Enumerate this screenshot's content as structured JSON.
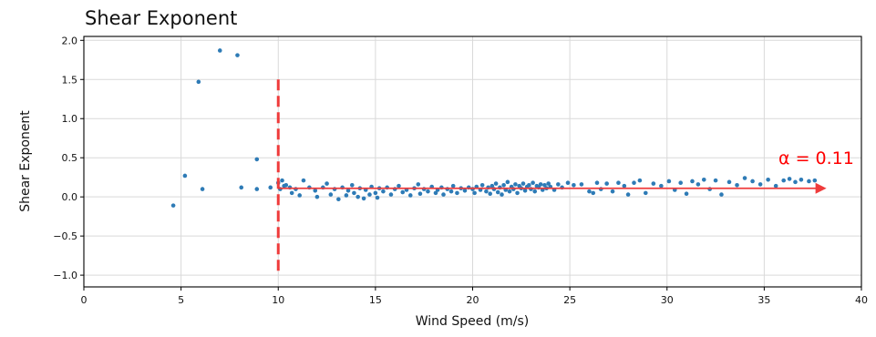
{
  "chart_data": {
    "type": "scatter",
    "title": "Shear Exponent",
    "xlabel": "Wind Speed (m/s)",
    "ylabel": "Shear Exponent",
    "xlim": [
      0,
      40
    ],
    "ylim": [
      -1.15,
      2.05
    ],
    "x_ticks": [
      "0",
      "5",
      "10",
      "15",
      "20",
      "25",
      "30",
      "35",
      "40"
    ],
    "y_ticks": [
      "2.0",
      "1.5",
      "1.0",
      "0.5",
      "0.0",
      "−0.5",
      "−1.0"
    ],
    "grid": true,
    "colors": {
      "points": "#2e7bb6",
      "cutoff_line": "#ef3b3b",
      "fit_arrow": "#ef3b3b",
      "annotation": "#ff0000"
    },
    "cutoff": {
      "x": 10,
      "y_range": [
        -1.0,
        1.5
      ],
      "style": "dashed"
    },
    "fit": {
      "value": 0.11,
      "x_range": [
        10,
        38.2
      ],
      "label": "α = 0.11"
    },
    "points": [
      [
        4.6,
        -0.11
      ],
      [
        5.2,
        0.27
      ],
      [
        5.9,
        1.47
      ],
      [
        6.1,
        0.1
      ],
      [
        7.0,
        1.87
      ],
      [
        7.9,
        1.81
      ],
      [
        8.1,
        0.12
      ],
      [
        8.9,
        0.48
      ],
      [
        8.9,
        0.1
      ],
      [
        9.6,
        0.12
      ],
      [
        10.0,
        0.18
      ],
      [
        10.1,
        0.1
      ],
      [
        10.2,
        0.21
      ],
      [
        10.3,
        0.14
      ],
      [
        10.4,
        0.15
      ],
      [
        10.6,
        0.12
      ],
      [
        10.7,
        0.05
      ],
      [
        10.9,
        0.1
      ],
      [
        11.1,
        0.02
      ],
      [
        11.3,
        0.21
      ],
      [
        11.6,
        0.12
      ],
      [
        11.9,
        0.08
      ],
      [
        12.0,
        0.0
      ],
      [
        12.3,
        0.12
      ],
      [
        12.5,
        0.17
      ],
      [
        12.7,
        0.03
      ],
      [
        12.9,
        0.1
      ],
      [
        13.1,
        -0.03
      ],
      [
        13.3,
        0.12
      ],
      [
        13.5,
        0.02
      ],
      [
        13.6,
        0.08
      ],
      [
        13.8,
        0.15
      ],
      [
        13.9,
        0.05
      ],
      [
        14.1,
        0.0
      ],
      [
        14.2,
        0.11
      ],
      [
        14.4,
        -0.02
      ],
      [
        14.5,
        0.09
      ],
      [
        14.7,
        0.03
      ],
      [
        14.8,
        0.13
      ],
      [
        15.0,
        0.05
      ],
      [
        15.1,
        -0.01
      ],
      [
        15.2,
        0.11
      ],
      [
        15.4,
        0.07
      ],
      [
        15.6,
        0.12
      ],
      [
        15.8,
        0.03
      ],
      [
        16.0,
        0.1
      ],
      [
        16.2,
        0.14
      ],
      [
        16.4,
        0.06
      ],
      [
        16.6,
        0.09
      ],
      [
        16.8,
        0.02
      ],
      [
        17.0,
        0.11
      ],
      [
        17.2,
        0.16
      ],
      [
        17.3,
        0.04
      ],
      [
        17.5,
        0.1
      ],
      [
        17.7,
        0.07
      ],
      [
        17.9,
        0.13
      ],
      [
        18.1,
        0.05
      ],
      [
        18.2,
        0.09
      ],
      [
        18.4,
        0.12
      ],
      [
        18.5,
        0.03
      ],
      [
        18.7,
        0.1
      ],
      [
        18.9,
        0.07
      ],
      [
        19.0,
        0.14
      ],
      [
        19.2,
        0.05
      ],
      [
        19.4,
        0.11
      ],
      [
        19.6,
        0.08
      ],
      [
        19.8,
        0.12
      ],
      [
        20.0,
        0.1
      ],
      [
        20.1,
        0.05
      ],
      [
        20.2,
        0.13
      ],
      [
        20.4,
        0.09
      ],
      [
        20.5,
        0.15
      ],
      [
        20.7,
        0.07
      ],
      [
        20.8,
        0.12
      ],
      [
        20.9,
        0.04
      ],
      [
        21.0,
        0.14
      ],
      [
        21.1,
        0.1
      ],
      [
        21.2,
        0.17
      ],
      [
        21.3,
        0.06
      ],
      [
        21.4,
        0.12
      ],
      [
        21.5,
        0.03
      ],
      [
        21.6,
        0.15
      ],
      [
        21.7,
        0.09
      ],
      [
        21.8,
        0.19
      ],
      [
        21.9,
        0.07
      ],
      [
        22.0,
        0.13
      ],
      [
        22.1,
        0.1
      ],
      [
        22.2,
        0.16
      ],
      [
        22.3,
        0.05
      ],
      [
        22.4,
        0.14
      ],
      [
        22.5,
        0.11
      ],
      [
        22.6,
        0.17
      ],
      [
        22.7,
        0.08
      ],
      [
        22.8,
        0.13
      ],
      [
        22.9,
        0.15
      ],
      [
        23.0,
        0.1
      ],
      [
        23.1,
        0.18
      ],
      [
        23.2,
        0.07
      ],
      [
        23.3,
        0.14
      ],
      [
        23.4,
        0.12
      ],
      [
        23.5,
        0.16
      ],
      [
        23.6,
        0.09
      ],
      [
        23.7,
        0.15
      ],
      [
        23.8,
        0.11
      ],
      [
        23.9,
        0.17
      ],
      [
        24.0,
        0.13
      ],
      [
        24.2,
        0.09
      ],
      [
        24.4,
        0.16
      ],
      [
        24.6,
        0.12
      ],
      [
        24.9,
        0.18
      ],
      [
        25.2,
        0.15
      ],
      [
        25.6,
        0.16
      ],
      [
        26.0,
        0.07
      ],
      [
        26.2,
        0.05
      ],
      [
        26.4,
        0.18
      ],
      [
        26.6,
        0.1
      ],
      [
        26.9,
        0.17
      ],
      [
        27.2,
        0.07
      ],
      [
        27.5,
        0.18
      ],
      [
        27.8,
        0.14
      ],
      [
        28.0,
        0.03
      ],
      [
        28.3,
        0.18
      ],
      [
        28.6,
        0.21
      ],
      [
        28.9,
        0.05
      ],
      [
        29.3,
        0.17
      ],
      [
        29.7,
        0.14
      ],
      [
        30.1,
        0.2
      ],
      [
        30.4,
        0.09
      ],
      [
        30.7,
        0.18
      ],
      [
        31.0,
        0.04
      ],
      [
        31.3,
        0.2
      ],
      [
        31.6,
        0.16
      ],
      [
        31.9,
        0.22
      ],
      [
        32.2,
        0.1
      ],
      [
        32.5,
        0.21
      ],
      [
        32.8,
        0.03
      ],
      [
        33.2,
        0.19
      ],
      [
        33.6,
        0.15
      ],
      [
        34.0,
        0.24
      ],
      [
        34.4,
        0.2
      ],
      [
        34.8,
        0.16
      ],
      [
        35.2,
        0.22
      ],
      [
        35.6,
        0.14
      ],
      [
        36.0,
        0.21
      ],
      [
        36.3,
        0.23
      ],
      [
        36.6,
        0.19
      ],
      [
        36.9,
        0.22
      ],
      [
        37.3,
        0.2
      ],
      [
        37.6,
        0.21
      ]
    ]
  }
}
